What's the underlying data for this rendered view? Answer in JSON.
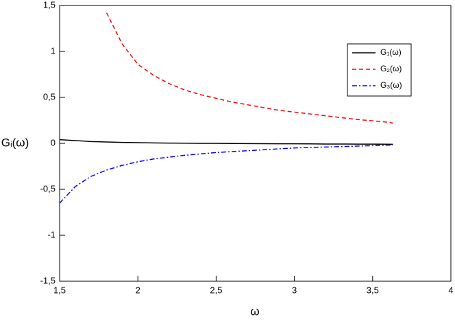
{
  "chart_data": {
    "type": "line",
    "xlabel": "ω",
    "ylabel": "Gᵢ(ω)",
    "xlim": [
      1.5,
      4
    ],
    "ylim": [
      -1.5,
      1.5
    ],
    "xticks": [
      {
        "value": 1.5,
        "label": "1,5"
      },
      2,
      {
        "value": 2.5,
        "label": "2,5"
      },
      3,
      {
        "value": 3.5,
        "label": "3,5"
      },
      4
    ],
    "yticks": [
      {
        "value": -1.5,
        "label": "-1,5"
      },
      -1,
      {
        "value": -0.5,
        "label": "-0,5"
      },
      0,
      {
        "value": 0.5,
        "label": "0,5"
      },
      1,
      {
        "value": 1.5,
        "label": "1,5"
      }
    ],
    "grid": false,
    "legend": "upper right",
    "x": [
      1.5,
      1.6,
      1.7,
      1.8,
      1.9,
      2.0,
      2.1,
      2.2,
      2.3,
      2.4,
      2.5,
      2.6,
      2.7,
      2.8,
      2.9,
      3.0,
      3.1,
      3.2,
      3.3,
      3.4,
      3.5,
      3.6,
      3.63
    ],
    "series": [
      {
        "name": "G₁(ω)",
        "color": "#000000",
        "dash": "solid",
        "values": [
          0.04,
          0.03,
          0.02,
          0.015,
          0.01,
          0.007,
          0.005,
          0.003,
          0.002,
          0.0,
          0.0,
          -0.002,
          -0.003,
          -0.004,
          -0.005,
          -0.005,
          -0.006,
          -0.007,
          -0.007,
          -0.008,
          -0.008,
          -0.009,
          -0.01
        ]
      },
      {
        "name": "G₂(ω)",
        "color": "#ff0000",
        "dash": "dashed",
        "values": [
          null,
          null,
          null,
          1.42,
          1.08,
          0.86,
          0.74,
          0.65,
          0.58,
          0.53,
          0.49,
          0.45,
          0.42,
          0.39,
          0.36,
          0.34,
          0.32,
          0.3,
          0.28,
          0.26,
          0.245,
          0.23,
          0.22
        ]
      },
      {
        "name": "G₃(ω)",
        "color": "#0000ff",
        "dash": "dashdot",
        "values": [
          -0.65,
          -0.47,
          -0.36,
          -0.29,
          -0.24,
          -0.2,
          -0.17,
          -0.15,
          -0.13,
          -0.115,
          -0.1,
          -0.09,
          -0.08,
          -0.07,
          -0.06,
          -0.05,
          -0.045,
          -0.04,
          -0.035,
          -0.03,
          -0.025,
          -0.02,
          -0.02
        ]
      }
    ]
  }
}
